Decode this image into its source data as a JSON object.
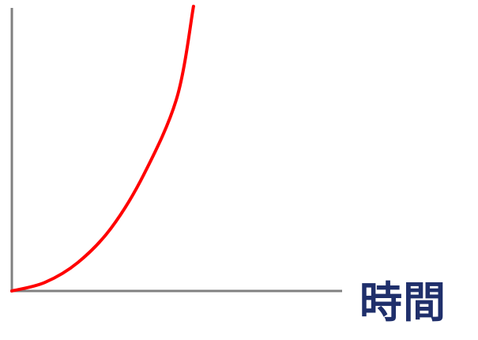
{
  "colors": {
    "axis": "#808080",
    "curve": "#ff0000",
    "label": "#1f2f6b"
  },
  "chart_data": {
    "type": "line",
    "title": "",
    "xlabel": "時間",
    "ylabel": "",
    "grid": false,
    "xlim": [
      0,
      1
    ],
    "ylim": [
      0,
      1
    ],
    "series": [
      {
        "x": [
          0,
          0.1,
          0.2,
          0.3,
          0.4,
          0.5,
          0.55
        ],
        "y": [
          0,
          0.03,
          0.1,
          0.22,
          0.41,
          0.68,
          1.0
        ]
      }
    ]
  }
}
